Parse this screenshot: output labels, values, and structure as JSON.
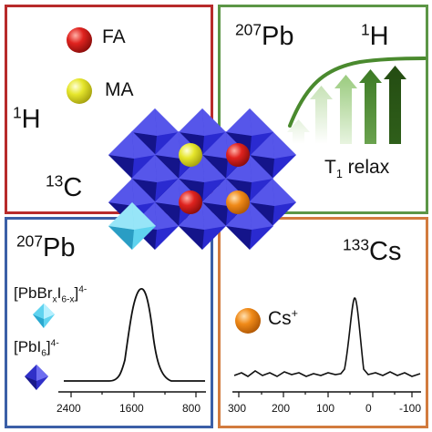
{
  "panels": {
    "top_left": {
      "legend": [
        {
          "label": "FA",
          "color": "#e0231f"
        },
        {
          "label": "MA",
          "color": "#e6e62c"
        }
      ],
      "nuclei": [
        {
          "mass": "",
          "element": "1",
          "sup_after": "H"
        },
        {
          "mass": "13",
          "element": "C"
        }
      ]
    },
    "top_right": {
      "nucleus_a": {
        "mass": "207",
        "element": "Pb"
      },
      "nucleus_b": {
        "mass": "1",
        "element": "H"
      },
      "relax_label": {
        "prefix": "T",
        "subscript": "1",
        "suffix": " relax"
      },
      "curve_color": "#4a8a2e"
    },
    "bottom_left": {
      "nucleus": {
        "mass": "207",
        "element": "Pb"
      },
      "species": [
        {
          "formula_main": "[PbBr",
          "x": "x",
          "mid": "I",
          "sub2": "6-x",
          "close": "]",
          "charge": "4-",
          "color": "#5fd3ef"
        },
        {
          "formula_main": "[PbI",
          "sub2": "6",
          "close": "]",
          "charge": "4-",
          "color": "#3030c8"
        }
      ],
      "axis_ticks": [
        "2400",
        "1600",
        "800"
      ]
    },
    "bottom_right": {
      "nucleus": {
        "mass": "133",
        "element": "Cs"
      },
      "ion_label": "Cs",
      "ion_charge": "+",
      "ion_color": "#f08a18",
      "axis_ticks": [
        "300",
        "200",
        "100",
        "0",
        "-100"
      ]
    }
  },
  "center_crystal": {
    "octahedron_color": "#2a2ad0",
    "cation_colors": [
      "#e6e62c",
      "#e0231f",
      "#e0231f",
      "#f08a18"
    ]
  }
}
